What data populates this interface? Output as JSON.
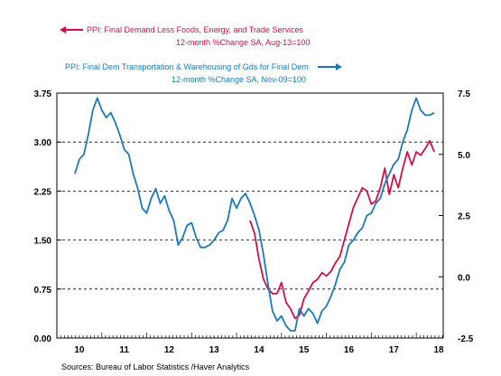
{
  "chart_data": {
    "type": "line",
    "legend": {
      "series_a_line1": "PPI: Final Demand Less Foods, Energy, and Trade Services",
      "series_a_line2": "12-month %Change     SA, Aug-13=100",
      "series_b_line1": "PPI: Final Dem Transportation & Warehousing of Gds for Final Dem",
      "series_b_line2": "12-month %Change     SA, Nov-09=100"
    },
    "source": "Sources:  Bureau of Labor Statistics /Haver Analytics",
    "x_ticks": [
      "10",
      "11",
      "12",
      "13",
      "14",
      "15",
      "16",
      "17",
      "18"
    ],
    "xlim": [
      2010.0,
      2018.6
    ],
    "y_left": {
      "ticks": [
        "0.00",
        "0.75",
        "1.50",
        "2.25",
        "3.00",
        "3.75"
      ],
      "lim": [
        0.0,
        3.75
      ]
    },
    "y_right": {
      "ticks": [
        "-2.5",
        "0.0",
        "2.5",
        "5.0",
        "7.5"
      ],
      "lim": [
        -2.5,
        7.5
      ]
    },
    "grid": "horizontal dashed at left-axis ticks",
    "series": [
      {
        "name": "PPI: Final Demand Less Foods, Energy, and Trade Services",
        "axis": "left",
        "color": "#d0104c",
        "x": [
          2014.3,
          2014.4,
          2014.5,
          2014.6,
          2014.7,
          2014.8,
          2014.9,
          2015.0,
          2015.1,
          2015.2,
          2015.3,
          2015.4,
          2015.5,
          2015.6,
          2015.7,
          2015.8,
          2015.9,
          2016.0,
          2016.1,
          2016.2,
          2016.3,
          2016.4,
          2016.5,
          2016.6,
          2016.7,
          2016.8,
          2016.9,
          2017.0,
          2017.1,
          2017.2,
          2017.3,
          2017.4,
          2017.5,
          2017.6,
          2017.7,
          2017.8,
          2017.9,
          2018.0,
          2018.1,
          2018.2,
          2018.3,
          2018.4
        ],
        "y": [
          1.8,
          1.6,
          1.2,
          0.9,
          0.75,
          0.68,
          0.68,
          0.85,
          0.55,
          0.45,
          0.3,
          0.35,
          0.6,
          0.72,
          0.85,
          0.9,
          1.0,
          0.95,
          1.02,
          1.15,
          1.25,
          1.5,
          1.75,
          2.0,
          2.15,
          2.3,
          2.25,
          2.05,
          2.1,
          2.3,
          2.6,
          2.2,
          2.5,
          2.3,
          2.6,
          2.85,
          2.65,
          2.85,
          2.8,
          2.9,
          3.02,
          2.85
        ]
      },
      {
        "name": "PPI: Final Dem Transportation & Warehousing of Gds for Final Dem",
        "axis": "right",
        "color": "#1a7ab8",
        "x": [
          2010.4,
          2010.5,
          2010.6,
          2010.7,
          2010.8,
          2010.9,
          2011.0,
          2011.1,
          2011.2,
          2011.3,
          2011.4,
          2011.5,
          2011.6,
          2011.7,
          2011.8,
          2011.9,
          2012.0,
          2012.1,
          2012.2,
          2012.3,
          2012.4,
          2012.5,
          2012.6,
          2012.7,
          2012.8,
          2012.9,
          2013.0,
          2013.1,
          2013.2,
          2013.3,
          2013.4,
          2013.5,
          2013.6,
          2013.7,
          2013.8,
          2013.9,
          2014.0,
          2014.1,
          2014.2,
          2014.3,
          2014.4,
          2014.5,
          2014.6,
          2014.7,
          2014.8,
          2014.9,
          2015.0,
          2015.1,
          2015.2,
          2015.3,
          2015.4,
          2015.5,
          2015.6,
          2015.7,
          2015.8,
          2015.9,
          2016.0,
          2016.1,
          2016.2,
          2016.3,
          2016.4,
          2016.5,
          2016.6,
          2016.7,
          2016.8,
          2016.9,
          2017.0,
          2017.1,
          2017.2,
          2017.3,
          2017.4,
          2017.5,
          2017.6,
          2017.7,
          2017.8,
          2017.9,
          2018.0,
          2018.1,
          2018.2,
          2018.3,
          2018.4
        ],
        "y": [
          4.2,
          4.8,
          5.0,
          5.8,
          6.8,
          7.3,
          6.8,
          6.5,
          6.7,
          6.3,
          5.8,
          5.2,
          5.0,
          4.2,
          3.6,
          2.8,
          2.6,
          3.2,
          3.6,
          3.0,
          3.3,
          2.7,
          2.3,
          1.3,
          1.6,
          2.1,
          2.2,
          1.6,
          1.2,
          1.2,
          1.3,
          1.5,
          1.8,
          1.9,
          2.3,
          3.2,
          2.8,
          3.2,
          3.4,
          3.0,
          2.5,
          1.9,
          0.9,
          -0.3,
          -1.4,
          -1.8,
          -1.6,
          -2.0,
          -2.2,
          -2.2,
          -1.3,
          -1.6,
          -1.3,
          -1.5,
          -1.9,
          -1.4,
          -1.2,
          -0.8,
          -0.3,
          0.3,
          0.6,
          1.3,
          1.5,
          1.8,
          2.0,
          2.5,
          2.6,
          3.0,
          3.2,
          3.8,
          4.2,
          4.6,
          4.8,
          5.5,
          6.0,
          6.8,
          7.3,
          6.8,
          6.6,
          6.6,
          6.7
        ]
      }
    ]
  }
}
